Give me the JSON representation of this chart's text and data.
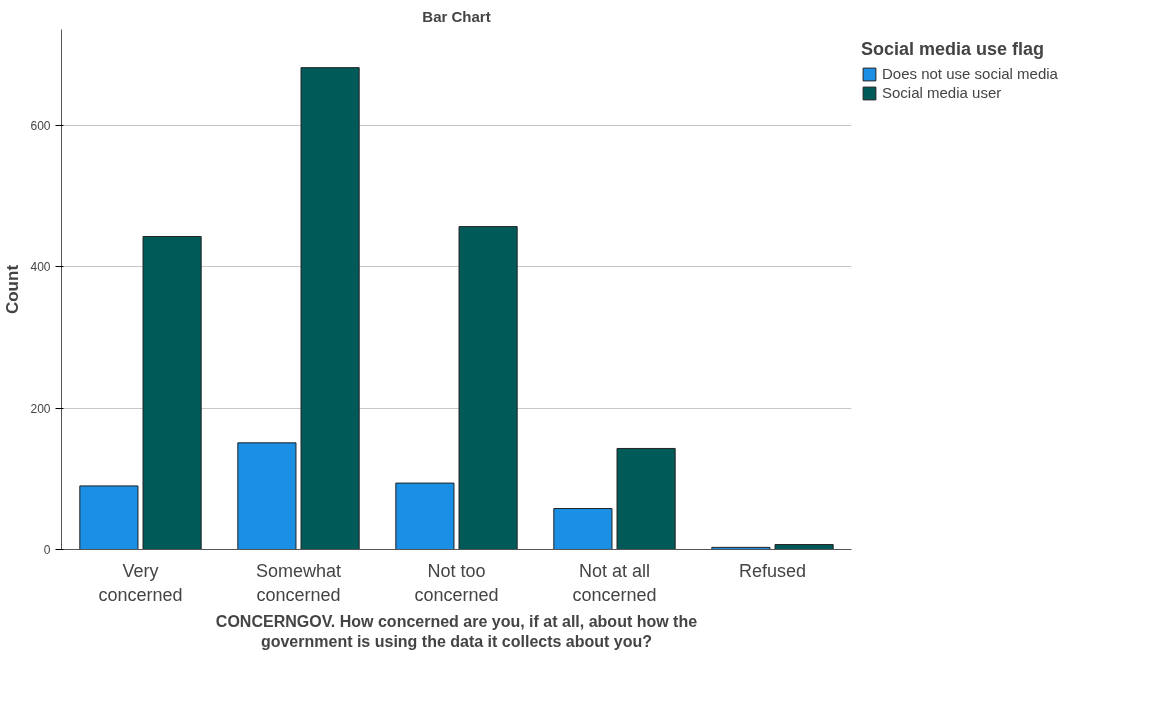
{
  "chart_data": {
    "type": "bar",
    "title": "Bar Chart",
    "xlabel": "CONCERNGOV. How concerned are you, if at all, about how the\ngovernment is using the data it collects about you?",
    "ylabel": "Count",
    "legend_title": "Social media use flag",
    "categories": [
      "Very\nconcerned",
      "Somewhat\nconcerned",
      "Not too\nconcerned",
      "Not at all\nconcerned",
      "Refused"
    ],
    "series": [
      {
        "name": "Does not use social media",
        "color": "#1a8fe3",
        "values": [
          90,
          151,
          94,
          58,
          3
        ]
      },
      {
        "name": "Social media user",
        "color": "#005a58",
        "values": [
          443,
          682,
          457,
          143,
          7
        ]
      }
    ],
    "ylim": [
      0,
      736
    ],
    "yticks": [
      0,
      200,
      400,
      600
    ],
    "grid": "y",
    "legend": "top right"
  }
}
